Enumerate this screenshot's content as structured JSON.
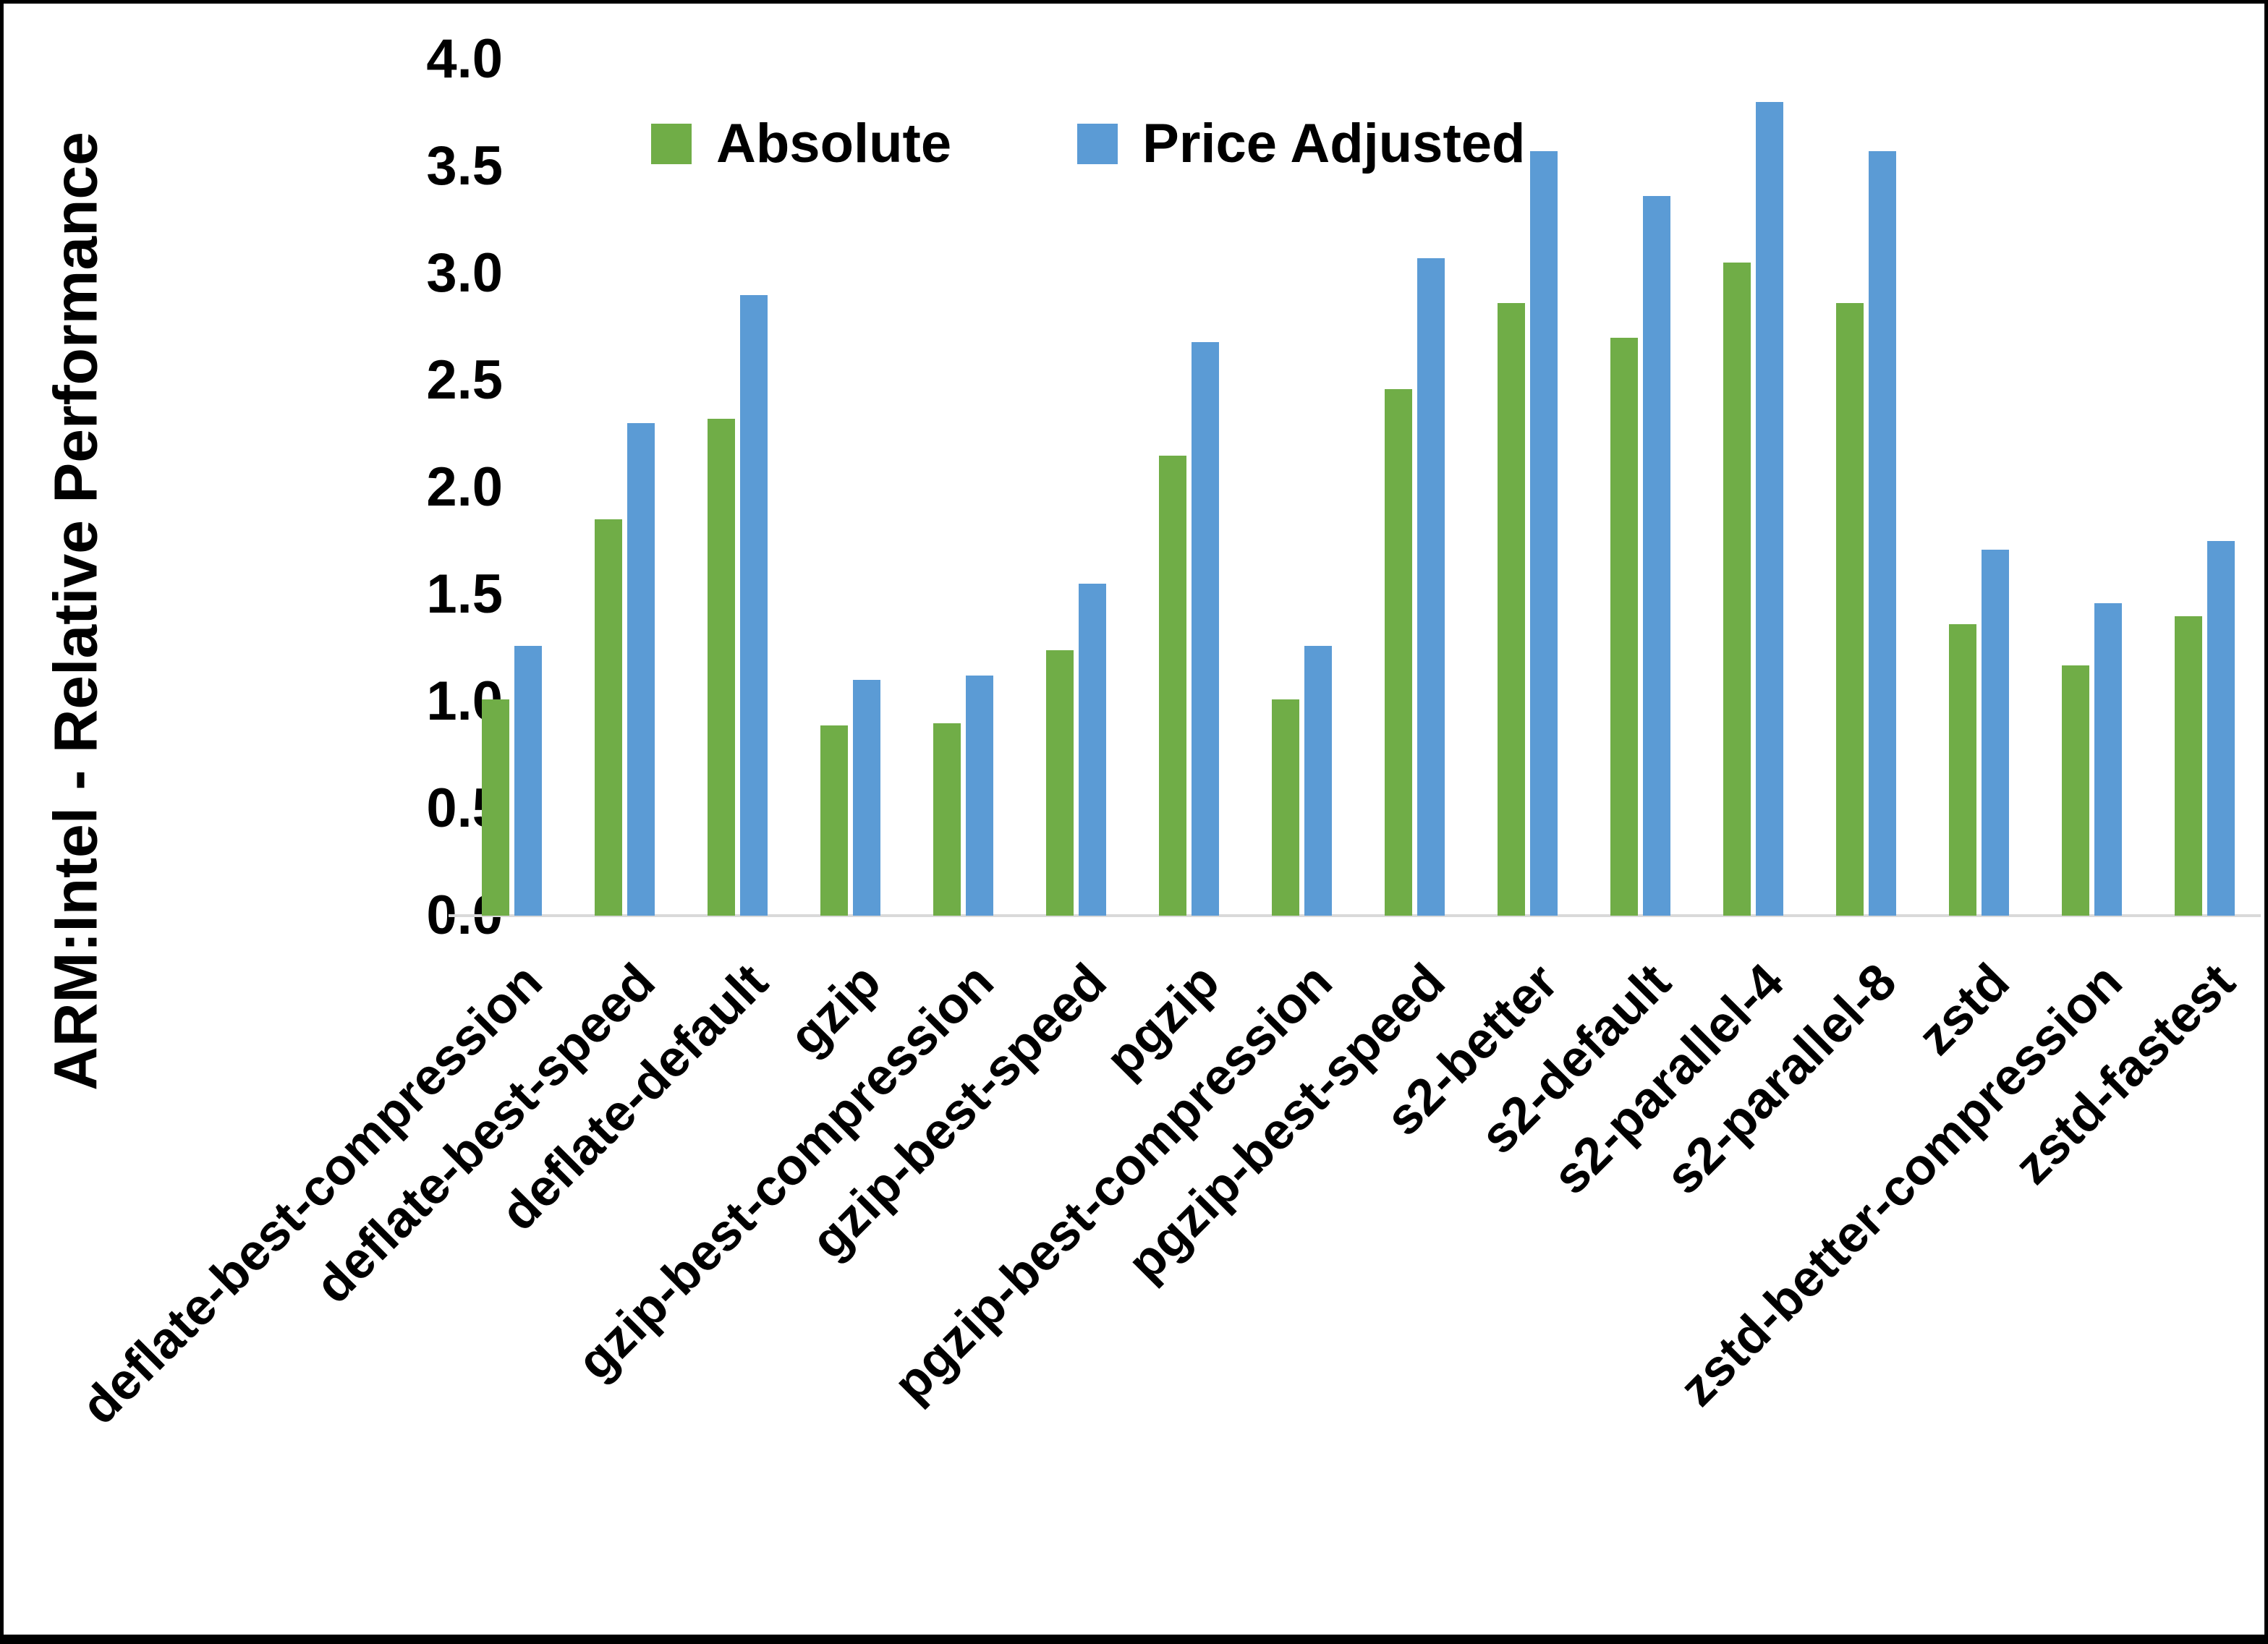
{
  "chart_data": {
    "type": "bar",
    "title": "",
    "xlabel": "",
    "ylabel": "ARM:Intel - Relative Performance",
    "ylim": [
      0.0,
      4.0
    ],
    "ytick_step": 0.5,
    "yticks": [
      "4.0",
      "3.5",
      "3.0",
      "2.5",
      "2.0",
      "1.5",
      "1.0",
      "0.5",
      "0.0"
    ],
    "grid": false,
    "legend_position": "top-center",
    "axis_line_color": "#d9d9d9",
    "text_color": "#000000",
    "categories": [
      "deflate-best-compression",
      "deflate-best-speed",
      "deflate-default",
      "gzip",
      "gzip-best-compression",
      "gzip-best-speed",
      "pgzip",
      "pgzip-best-compression",
      "pgzip-best-speed",
      "s2-better",
      "s2-default",
      "s2-parallel-4",
      "s2-parallel-8",
      "zstd",
      "zstd-better-compression",
      "zstd-fastest"
    ],
    "series": [
      {
        "name": "Absolute",
        "color": "#70AD47",
        "values": [
          1.01,
          1.85,
          2.32,
          0.89,
          0.9,
          1.24,
          2.15,
          1.01,
          2.46,
          2.86,
          2.7,
          3.05,
          2.86,
          1.36,
          1.17,
          1.4
        ]
      },
      {
        "name": "Price Adjusted",
        "color": "#5B9BD5",
        "values": [
          1.26,
          2.3,
          2.9,
          1.1,
          1.12,
          1.55,
          2.68,
          1.26,
          3.07,
          3.57,
          3.36,
          3.8,
          3.57,
          1.71,
          1.46,
          1.75
        ]
      }
    ]
  }
}
